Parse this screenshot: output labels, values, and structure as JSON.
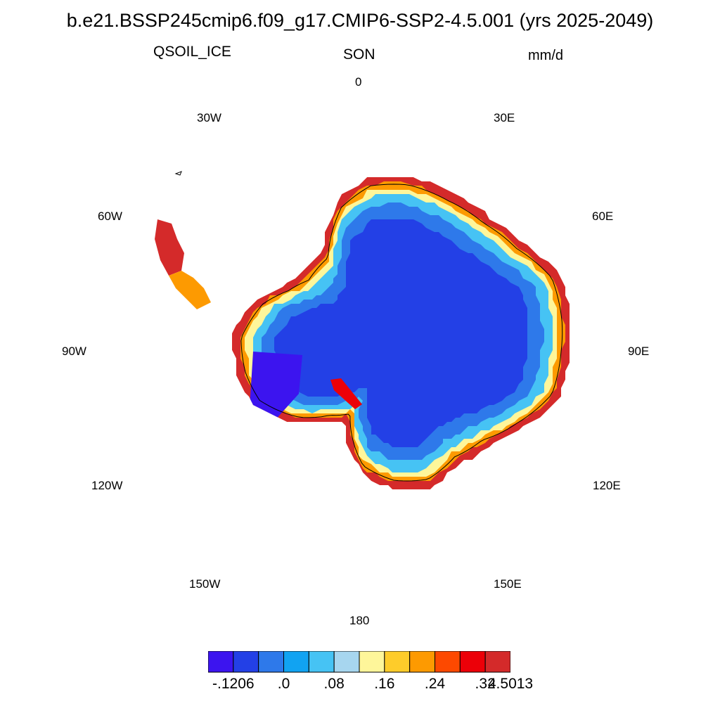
{
  "header": {
    "title": "b.e21.BSSP245cmip6.f09_g17.CMIP6-SSP2-4.5.001 (yrs 2025-2049)",
    "variable": "QSOIL_ICE",
    "season": "SON",
    "units": "mm/d"
  },
  "longitude_labels": [
    "0",
    "30E",
    "60E",
    "90E",
    "120E",
    "150E",
    "180",
    "150W",
    "120W",
    "90W",
    "60W",
    "30W"
  ],
  "colorbar": {
    "colors": [
      "#3c14ef",
      "#2340e6",
      "#2e79ea",
      "#11a3f2",
      "#46c3f4",
      "#a7d6ef",
      "#fef69a",
      "#fecc2a",
      "#fd9a01",
      "#fd4900",
      "#ec0008",
      "#d42a2a"
    ],
    "labels": [
      "-.1206",
      ".0",
      ".08",
      ".16",
      ".24",
      ".32",
      "4.5013"
    ]
  }
}
